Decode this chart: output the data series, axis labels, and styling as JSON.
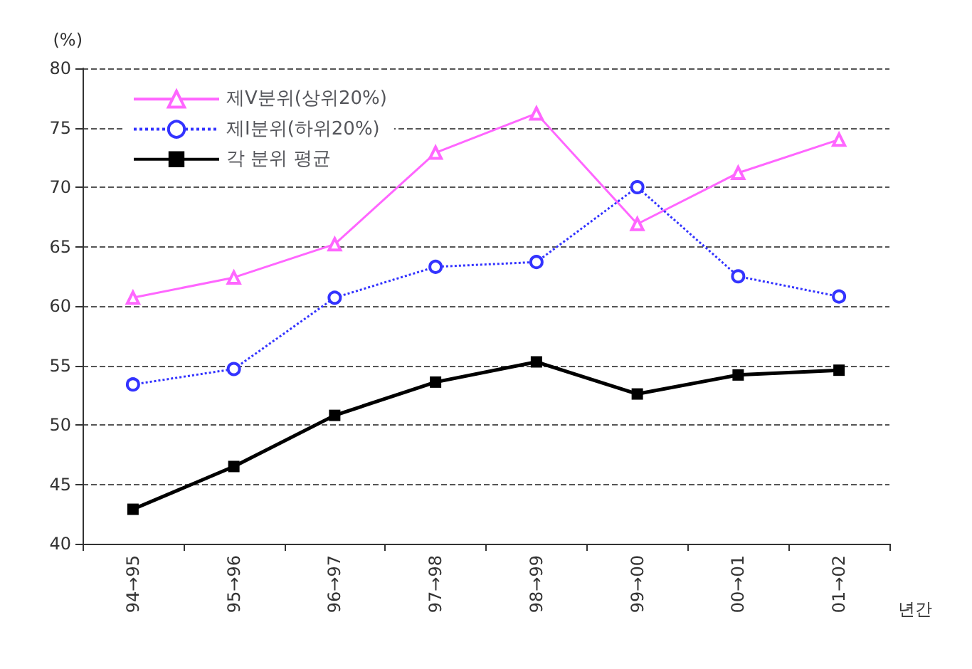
{
  "chart_data": {
    "type": "line",
    "ylabel": "(%)",
    "xlabel": "년간",
    "categories": [
      "94→95",
      "95→96",
      "96→97",
      "97→98",
      "98→99",
      "99→00",
      "00→01",
      "01→02"
    ],
    "series": [
      {
        "name": "제Ⅴ분위(상위20%)",
        "color": "#ff66ff",
        "marker": "triangle",
        "line_style": "solid",
        "values": [
          60.7,
          62.4,
          65.2,
          72.9,
          76.2,
          66.9,
          71.2,
          74.0
        ]
      },
      {
        "name": "제Ⅰ분위(하위20%)",
        "color": "#3333ff",
        "marker": "circle",
        "line_style": "dotted",
        "values": [
          53.4,
          54.7,
          60.7,
          63.3,
          63.7,
          70.0,
          62.5,
          60.8
        ]
      },
      {
        "name": "각 분위 평균",
        "color": "#000000",
        "marker": "square",
        "line_style": "solid",
        "values": [
          42.9,
          46.5,
          50.8,
          53.6,
          55.3,
          52.6,
          54.2,
          54.6
        ]
      }
    ],
    "ylim": [
      40,
      80
    ],
    "yticks": [
      40,
      45,
      50,
      55,
      60,
      65,
      70,
      75,
      80
    ],
    "grid": "y",
    "legend": "top left"
  }
}
